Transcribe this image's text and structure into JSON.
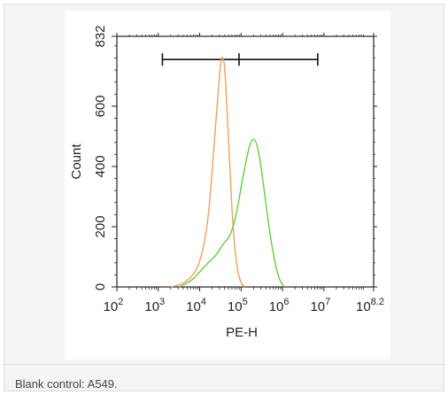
{
  "figure": {
    "caption": "Blank control: A549."
  },
  "chart_data": {
    "type": "line",
    "xlabel": "PE-H",
    "ylabel": "Count",
    "x_scale": "log10",
    "xlim": [
      2,
      8.2
    ],
    "ylim": [
      0,
      832
    ],
    "x_ticks": [
      {
        "base": "10",
        "exp": "2",
        "value": 2
      },
      {
        "base": "10",
        "exp": "3",
        "value": 3
      },
      {
        "base": "10",
        "exp": "4",
        "value": 4
      },
      {
        "base": "10",
        "exp": "5",
        "value": 5
      },
      {
        "base": "10",
        "exp": "6",
        "value": 6
      },
      {
        "base": "10",
        "exp": "7",
        "value": 7
      },
      {
        "base": "10",
        "exp": "8.2",
        "value": 8.2
      }
    ],
    "y_ticks": [
      {
        "label": "0",
        "value": 0
      },
      {
        "label": "200",
        "value": 200
      },
      {
        "label": "400",
        "value": 400
      },
      {
        "label": "600",
        "value": 600
      },
      {
        "label": "832",
        "value": 832
      }
    ],
    "gate": {
      "start": 3.1,
      "mid": 4.95,
      "end": 6.85,
      "count": 755
    },
    "series": [
      {
        "color": "#f0a060",
        "x": [
          3.3,
          3.6,
          3.85,
          4.0,
          4.15,
          4.25,
          4.35,
          4.45,
          4.5,
          4.55,
          4.6,
          4.65,
          4.72,
          4.8,
          4.9,
          5.0,
          5.1
        ],
        "y": [
          0,
          10,
          40,
          80,
          170,
          290,
          480,
          650,
          740,
          770,
          740,
          620,
          420,
          200,
          60,
          10,
          0
        ]
      },
      {
        "color": "#66cc44",
        "x": [
          3.5,
          3.8,
          4.0,
          4.2,
          4.4,
          4.55,
          4.65,
          4.75,
          4.85,
          4.95,
          5.05,
          5.15,
          5.25,
          5.35,
          5.45,
          5.55,
          5.65,
          5.75,
          5.85,
          5.95,
          6.05
        ],
        "y": [
          0,
          20,
          50,
          80,
          105,
          140,
          155,
          175,
          220,
          290,
          370,
          440,
          490,
          490,
          430,
          330,
          220,
          130,
          60,
          15,
          0
        ]
      }
    ]
  }
}
